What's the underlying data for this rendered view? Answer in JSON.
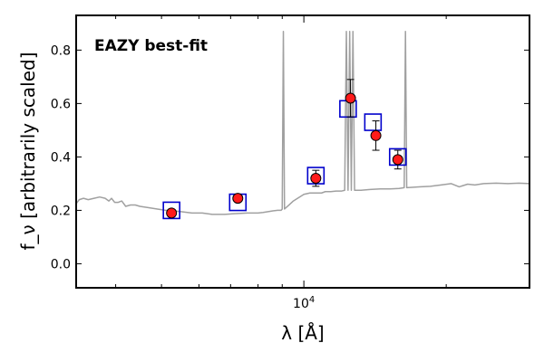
{
  "chart_data": {
    "type": "scatter",
    "annotation": "EAZY best-fit",
    "ylabel": "f_ν [arbitrarily scaled]",
    "xlabel": "λ [Å]",
    "x_scale": "log",
    "xlim": [
      3300,
      30000
    ],
    "ylim": [
      -0.09,
      0.93
    ],
    "y_ticks": [
      0.0,
      0.2,
      0.4,
      0.6,
      0.8
    ],
    "y_tick_labels": [
      "0.0",
      "0.2",
      "0.4",
      "0.6",
      "0.8"
    ],
    "x_tick_labels": [
      "10^4"
    ],
    "grid": false,
    "colors": {
      "annotation": "#ff0000",
      "model": "#a0a0a0",
      "model_photometry": "#0000cc",
      "observed": "#ff1a1a"
    },
    "series": [
      {
        "kind": "model_spectrum",
        "points": [
          [
            3300,
            0.225
          ],
          [
            3350,
            0.24
          ],
          [
            3420,
            0.245
          ],
          [
            3500,
            0.24
          ],
          [
            3600,
            0.245
          ],
          [
            3700,
            0.25
          ],
          [
            3800,
            0.245
          ],
          [
            3870,
            0.235
          ],
          [
            3920,
            0.245
          ],
          [
            3980,
            0.23
          ],
          [
            4050,
            0.23
          ],
          [
            4120,
            0.235
          ],
          [
            4200,
            0.215
          ],
          [
            4300,
            0.22
          ],
          [
            4400,
            0.22
          ],
          [
            4500,
            0.215
          ],
          [
            4700,
            0.21
          ],
          [
            4900,
            0.205
          ],
          [
            5100,
            0.2
          ],
          [
            5300,
            0.198
          ],
          [
            5500,
            0.195
          ],
          [
            5800,
            0.19
          ],
          [
            6100,
            0.19
          ],
          [
            6400,
            0.185
          ],
          [
            6800,
            0.185
          ],
          [
            7200,
            0.188
          ],
          [
            7600,
            0.19
          ],
          [
            8000,
            0.19
          ],
          [
            8200,
            0.192
          ],
          [
            8400,
            0.195
          ],
          [
            8600,
            0.198
          ],
          [
            8800,
            0.2
          ],
          [
            8950,
            0.2
          ],
          [
            9000,
            0.205
          ],
          [
            9050,
            0.87
          ],
          [
            9100,
            0.205
          ],
          [
            9300,
            0.22
          ],
          [
            9500,
            0.235
          ],
          [
            9700,
            0.245
          ],
          [
            10000,
            0.26
          ],
          [
            10300,
            0.265
          ],
          [
            10600,
            0.265
          ],
          [
            10900,
            0.265
          ],
          [
            11100,
            0.27
          ],
          [
            11400,
            0.27
          ],
          [
            11700,
            0.272
          ],
          [
            12000,
            0.272
          ],
          [
            12200,
            0.275
          ],
          [
            12300,
            0.87
          ],
          [
            12400,
            0.275
          ],
          [
            12500,
            0.87
          ],
          [
            12600,
            0.275
          ],
          [
            12700,
            0.87
          ],
          [
            12800,
            0.275
          ],
          [
            13200,
            0.275
          ],
          [
            13800,
            0.278
          ],
          [
            14500,
            0.28
          ],
          [
            15200,
            0.28
          ],
          [
            15900,
            0.282
          ],
          [
            16300,
            0.285
          ],
          [
            16400,
            0.87
          ],
          [
            16500,
            0.285
          ],
          [
            17500,
            0.288
          ],
          [
            18500,
            0.29
          ],
          [
            19500,
            0.295
          ],
          [
            20500,
            0.3
          ],
          [
            21300,
            0.288
          ],
          [
            22200,
            0.298
          ],
          [
            23000,
            0.295
          ],
          [
            24000,
            0.3
          ],
          [
            25500,
            0.302
          ],
          [
            27000,
            0.3
          ],
          [
            28500,
            0.302
          ],
          [
            30000,
            0.3
          ]
        ]
      },
      {
        "kind": "model_photometry",
        "points": [
          {
            "x": 5250,
            "y": 0.2
          },
          {
            "x": 7250,
            "y": 0.23
          },
          {
            "x": 10600,
            "y": 0.33
          },
          {
            "x": 12400,
            "y": 0.58
          },
          {
            "x": 14000,
            "y": 0.53
          },
          {
            "x": 15800,
            "y": 0.4
          }
        ]
      },
      {
        "kind": "observed",
        "points": [
          {
            "x": 5250,
            "y": 0.19,
            "err": 0.007
          },
          {
            "x": 7250,
            "y": 0.245,
            "err": 0.01
          },
          {
            "x": 10600,
            "y": 0.32,
            "err": 0.03
          },
          {
            "x": 12550,
            "y": 0.62,
            "err": 0.07
          },
          {
            "x": 14200,
            "y": 0.48,
            "err": 0.055
          },
          {
            "x": 15800,
            "y": 0.39,
            "err": 0.035
          }
        ]
      }
    ]
  }
}
